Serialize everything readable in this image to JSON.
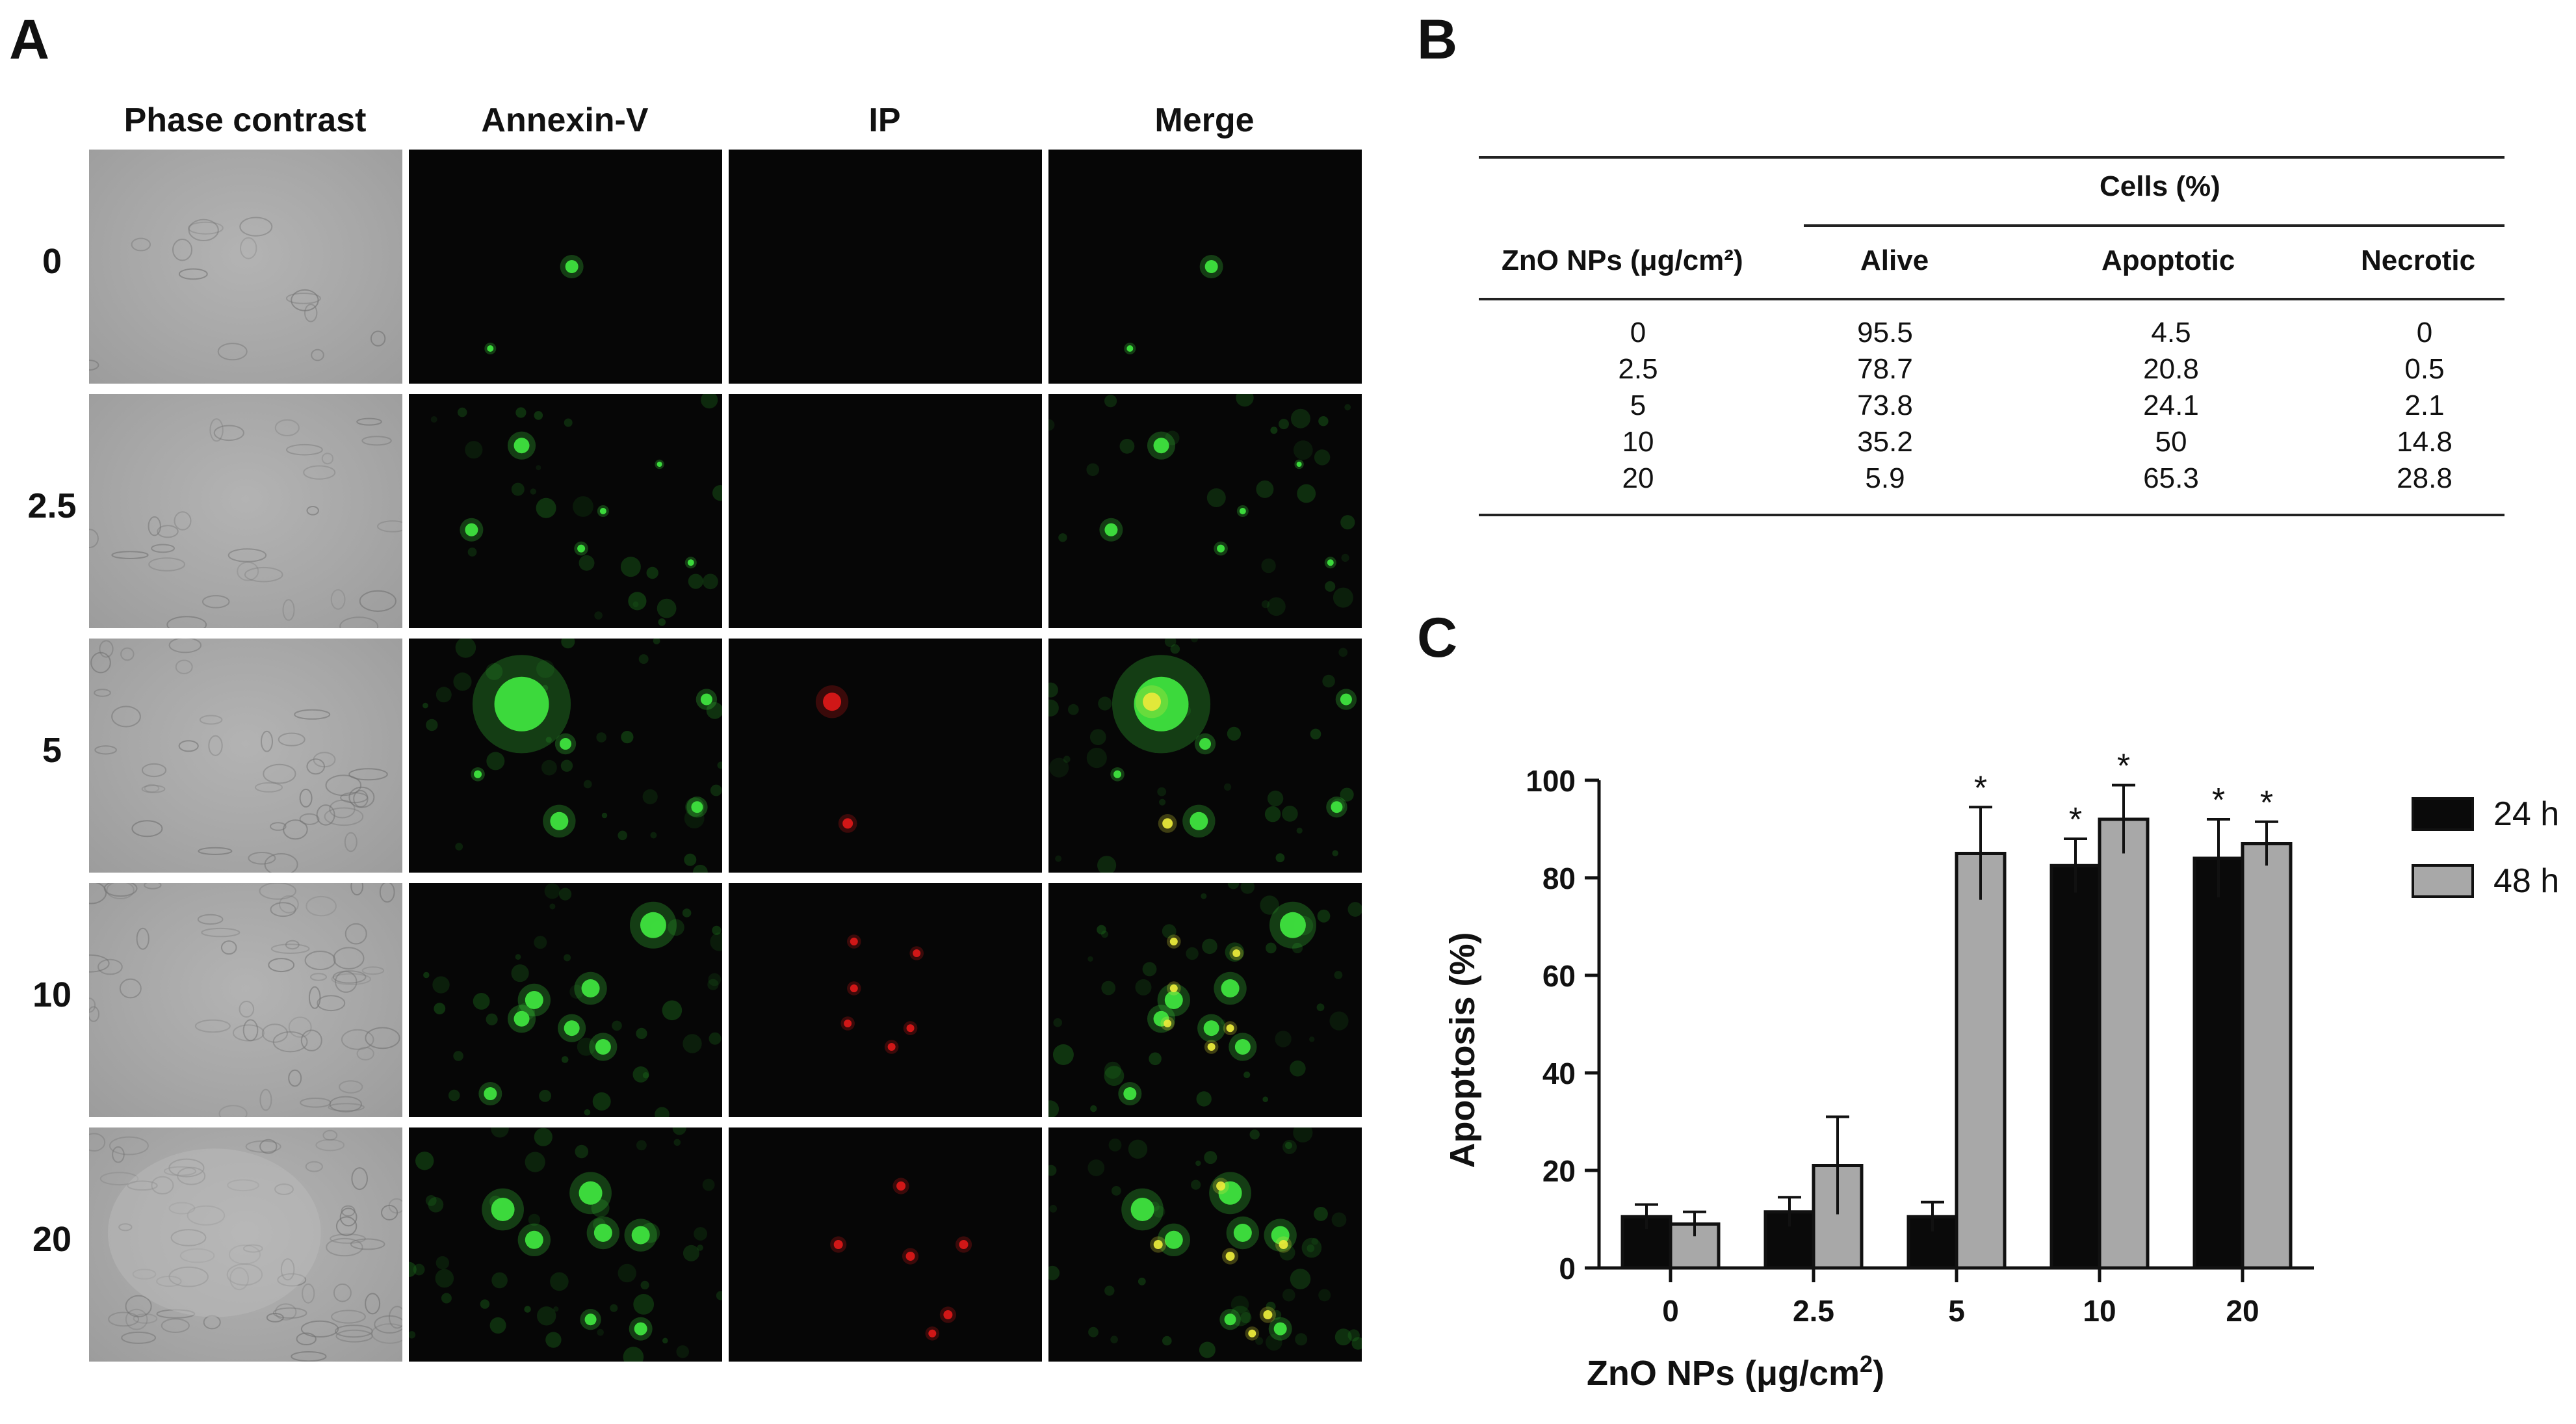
{
  "panel_a": {
    "letter": "A",
    "columns": [
      "Phase contrast",
      "Annexin-V",
      "IP",
      "Merge"
    ],
    "rows": [
      "0",
      "2.5",
      "5",
      "10",
      "20"
    ]
  },
  "panel_b": {
    "letter": "B",
    "group_header": "Cells (%)",
    "row_header": "ZnO NPs (μg/cm²)",
    "columns": [
      "Alive",
      "Apoptotic",
      "Necrotic"
    ],
    "rows": [
      {
        "dose": "0",
        "alive": "95.5",
        "apoptotic": "4.5",
        "necrotic": "0"
      },
      {
        "dose": "2.5",
        "alive": "78.7",
        "apoptotic": "20.8",
        "necrotic": "0.5"
      },
      {
        "dose": "5",
        "alive": "73.8",
        "apoptotic": "24.1",
        "necrotic": "2.1"
      },
      {
        "dose": "10",
        "alive": "35.2",
        "apoptotic": "50",
        "necrotic": "14.8"
      },
      {
        "dose": "20",
        "alive": "5.9",
        "apoptotic": "65.3",
        "necrotic": "28.8"
      }
    ]
  },
  "panel_c": {
    "letter": "C"
  },
  "colors": {
    "bar_24h": "#0a0a0a",
    "bar_48h": "#a8a8a8",
    "annexin_green": "#3ee23e",
    "ip_red": "#d81818"
  },
  "chart_data": {
    "type": "bar",
    "categories": [
      "0",
      "2.5",
      "5",
      "10",
      "20"
    ],
    "series": [
      {
        "name": "24 h",
        "values": [
          10.5,
          11.5,
          10.5,
          82.5,
          84.0
        ],
        "errors": [
          2.5,
          3.0,
          3.0,
          5.5,
          8.0
        ],
        "significant": [
          false,
          false,
          false,
          true,
          true
        ]
      },
      {
        "name": "48 h",
        "values": [
          9.0,
          21.0,
          85.0,
          92.0,
          87.0
        ],
        "errors": [
          2.5,
          10.0,
          9.5,
          7.0,
          4.5
        ],
        "significant": [
          false,
          false,
          true,
          true,
          true
        ]
      }
    ],
    "xlabel": "ZnO NPs (μg/cm²)",
    "ylabel": "Apoptosis (%)",
    "ylim": [
      0,
      100
    ],
    "yticks": [
      "0",
      "20",
      "40",
      "60",
      "80",
      "100"
    ],
    "significance_marker": "*",
    "legend_position": "right",
    "grid": false
  }
}
